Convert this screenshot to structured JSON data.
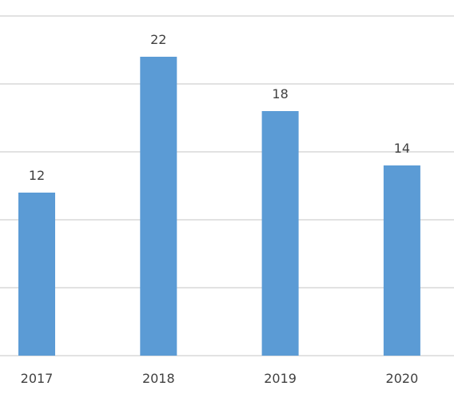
{
  "chart_data": {
    "type": "bar",
    "categories": [
      "2017",
      "2018",
      "2019",
      "2020"
    ],
    "values": [
      12,
      22,
      18,
      14
    ],
    "title": "",
    "xlabel": "",
    "ylabel": "",
    "ylim": [
      0,
      25
    ],
    "grid": true,
    "data_labels": true,
    "colors": {
      "bar": "#5b9bd5",
      "grid": "#d9d9d9",
      "text": "#404040"
    }
  }
}
